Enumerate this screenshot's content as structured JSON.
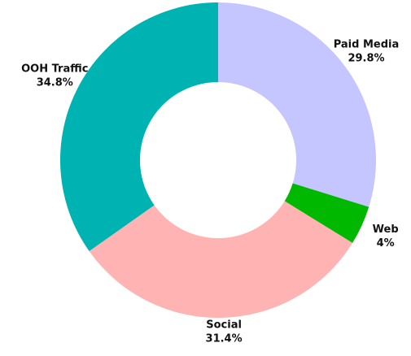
{
  "chart_data": {
    "type": "donut",
    "categories": [
      "Paid Media",
      "Web",
      "Social",
      "OOH Traffic"
    ],
    "values": [
      29.8,
      4,
      31.4,
      34.8
    ],
    "value_labels": [
      "29.8%",
      "4%",
      "31.4%",
      "34.8%"
    ],
    "colors": [
      "#c5c5ff",
      "#00b800",
      "#ffb3b3",
      "#00b3b3"
    ]
  }
}
